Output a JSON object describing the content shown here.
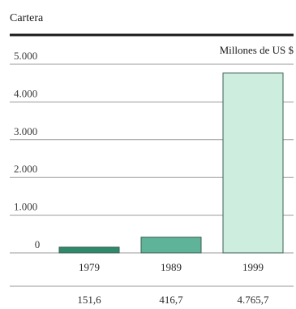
{
  "chart_data": {
    "type": "bar",
    "title": "Cartera",
    "unit_label": "Millones de US $",
    "categories": [
      "1979",
      "1989",
      "1999"
    ],
    "values": [
      151.6,
      416.7,
      4765.7
    ],
    "value_labels": [
      "151,6",
      "416,7",
      "4.765,7"
    ],
    "ylim": [
      0,
      5000
    ],
    "yticks": [
      0,
      1000,
      2000,
      3000,
      4000,
      5000
    ],
    "ytick_labels": [
      "0",
      "1.000",
      "2.000",
      "3.000",
      "4.000",
      "5.000"
    ],
    "grid": true,
    "colors": {
      "bars": [
        "#2f8a6c",
        "#5fb399",
        "#cdeede"
      ],
      "bar_stroke": "#3b5e52",
      "rule": "#1a1a1a",
      "grid": "#9a9a9a"
    }
  }
}
